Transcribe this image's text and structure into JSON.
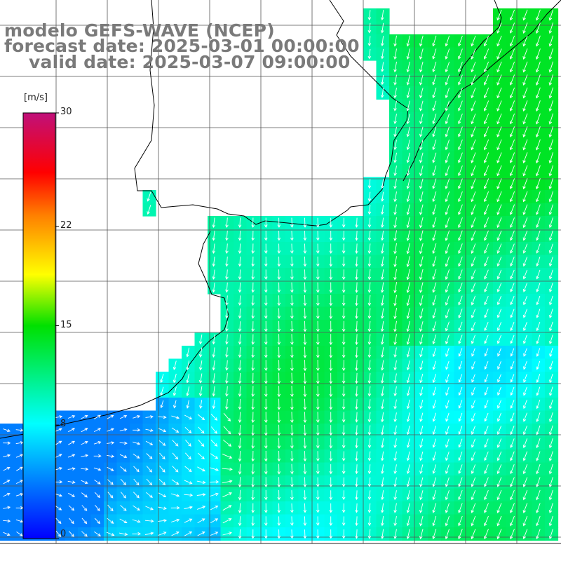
{
  "header": {
    "model": "modelo GEFS-WAVE (NCEP)",
    "forecast": "forecast date: 2025-03-01 00:00:00",
    "valid": "valid date: 2025-03-07 09:00:00"
  },
  "colorbar": {
    "unit": "[m/s]",
    "ticks": [
      {
        "value": 30,
        "label": "30"
      },
      {
        "value": 22,
        "label": "22"
      },
      {
        "value": 15,
        "label": "15"
      },
      {
        "value": 8,
        "label": "8"
      },
      {
        "value": 0,
        "label": "0"
      }
    ],
    "range": [
      0,
      30
    ]
  },
  "map": {
    "field": "wind speed and direction",
    "speed_range_ms": [
      4,
      14
    ],
    "prevailing_wind": "from north-northeast (arrows pointing south-southwest)",
    "land_color": "#ffffff",
    "grid_color": "#555555",
    "coast_color": "#000000",
    "arrow_color": "#ffffff",
    "grid": true
  }
}
